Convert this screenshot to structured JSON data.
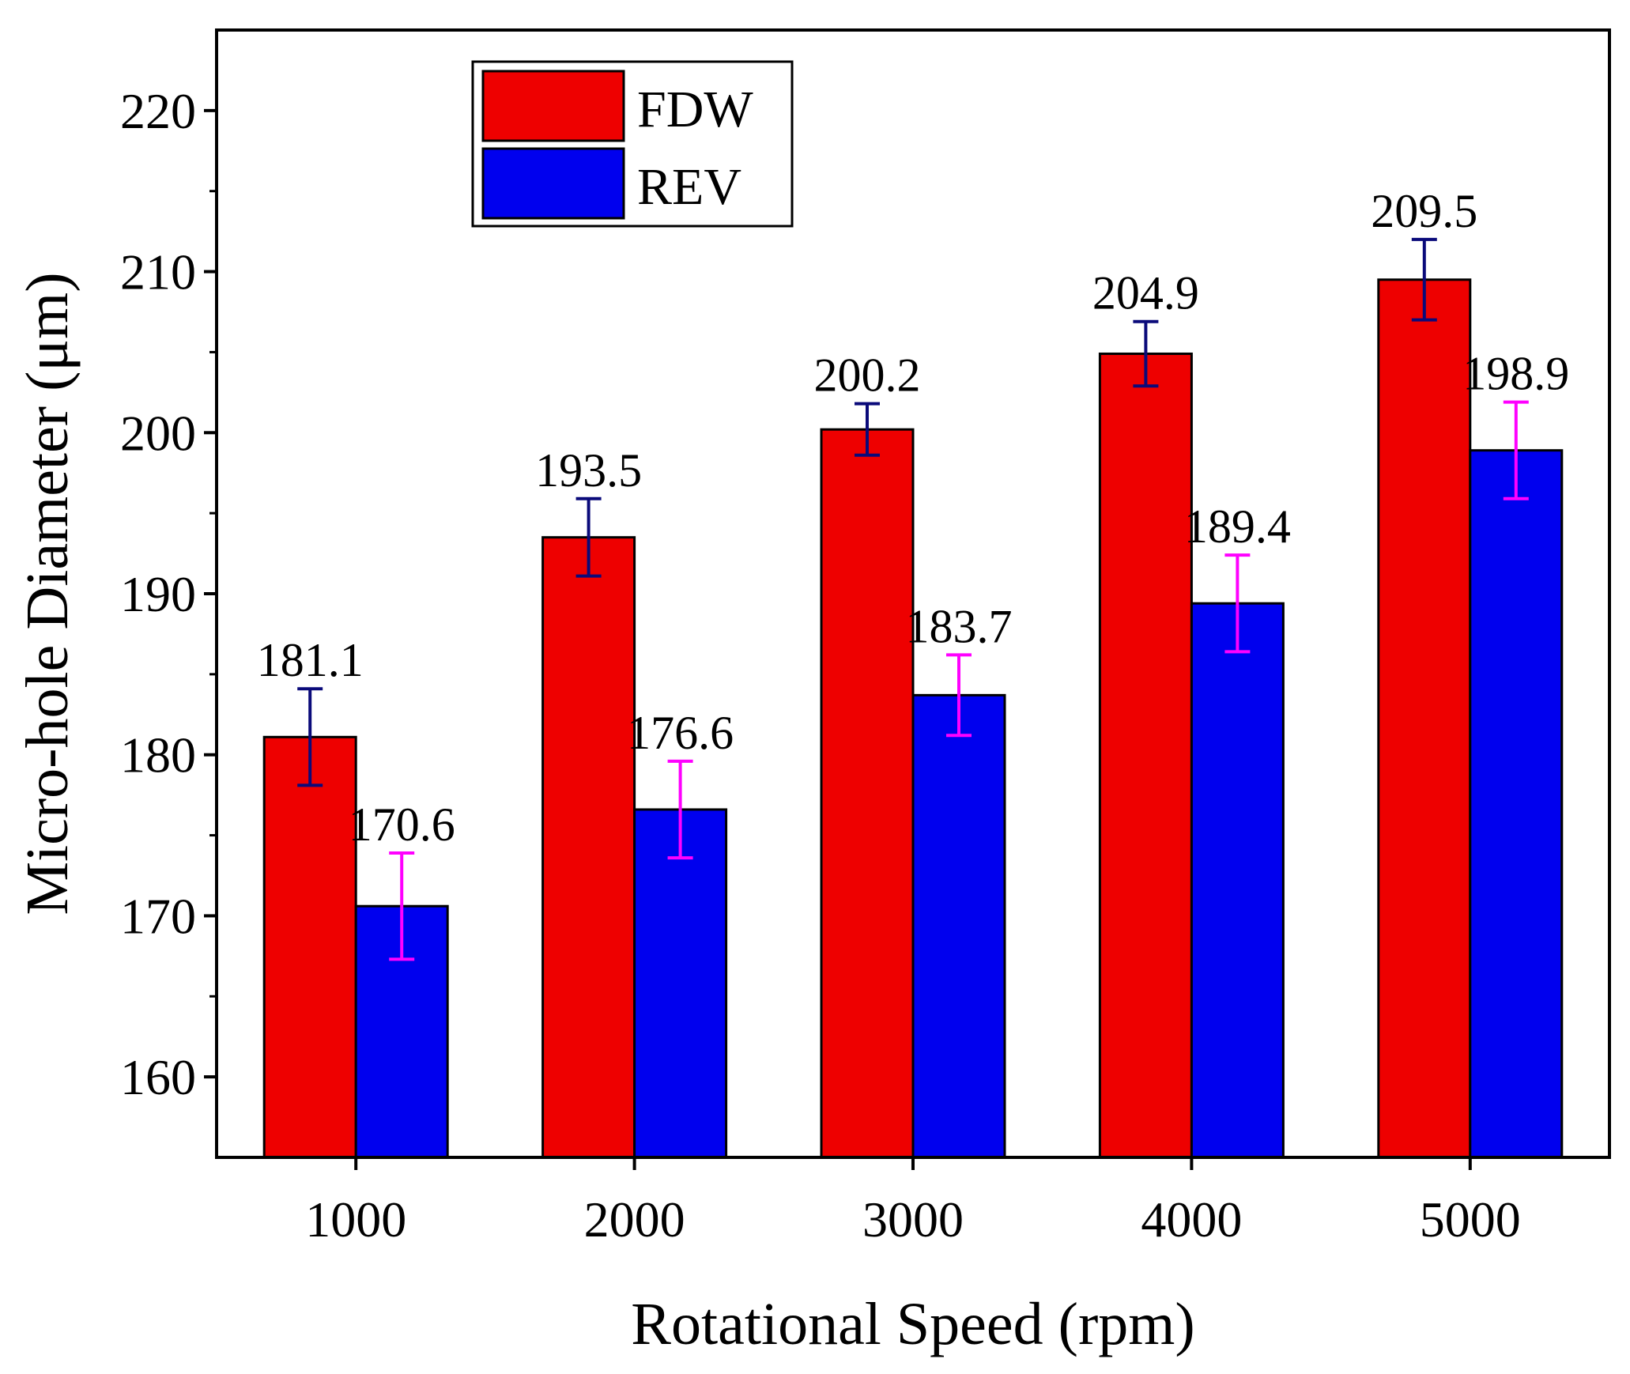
{
  "chart_data": {
    "type": "bar",
    "title": "",
    "xlabel": "Rotational Speed (rpm)",
    "ylabel": "Micro-hole Diameter (μm)",
    "categories": [
      "1000",
      "2000",
      "3000",
      "4000",
      "5000"
    ],
    "ylim": [
      155,
      225
    ],
    "yticks": [
      160,
      170,
      180,
      190,
      200,
      210,
      220
    ],
    "grid": false,
    "legend_position": "top-left",
    "series": [
      {
        "name": "FDW",
        "color": "#ee0000",
        "error_bar_color": "#0a0a7a",
        "values": [
          181.1,
          193.5,
          200.2,
          204.9,
          209.5
        ],
        "value_labels": [
          "181.1",
          "193.5",
          "200.2",
          "204.9",
          "209.5"
        ],
        "errors": [
          3.0,
          2.4,
          1.6,
          2.0,
          2.5
        ]
      },
      {
        "name": "REV",
        "color": "#0000ee",
        "error_bar_color": "#ff00ff",
        "values": [
          170.6,
          176.6,
          183.7,
          189.4,
          198.9
        ],
        "value_labels": [
          "170.6",
          "176.6",
          "183.7",
          "189.4",
          "198.9"
        ],
        "errors": [
          3.3,
          3.0,
          2.5,
          3.0,
          3.0
        ]
      }
    ]
  }
}
